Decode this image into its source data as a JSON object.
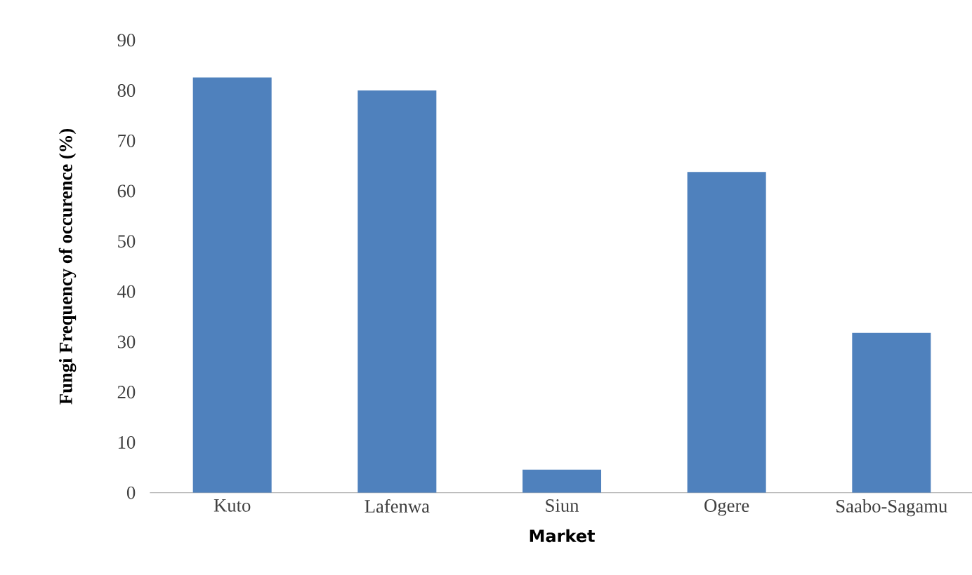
{
  "chart_data": {
    "type": "bar",
    "xlabel": "Market",
    "ylabel": "Fungi Frequency of occurence (%)",
    "categories": [
      "Kuto",
      "Lafenwa",
      "Siun",
      "Ogere",
      "Saabo-Sagamu"
    ],
    "values": [
      82.6,
      80,
      4.6,
      63.8,
      31.8
    ],
    "color": "#4f81bd",
    "ylim": [
      0,
      90
    ],
    "yticks": [
      0,
      10,
      20,
      30,
      40,
      50,
      60,
      70,
      80,
      90
    ]
  }
}
